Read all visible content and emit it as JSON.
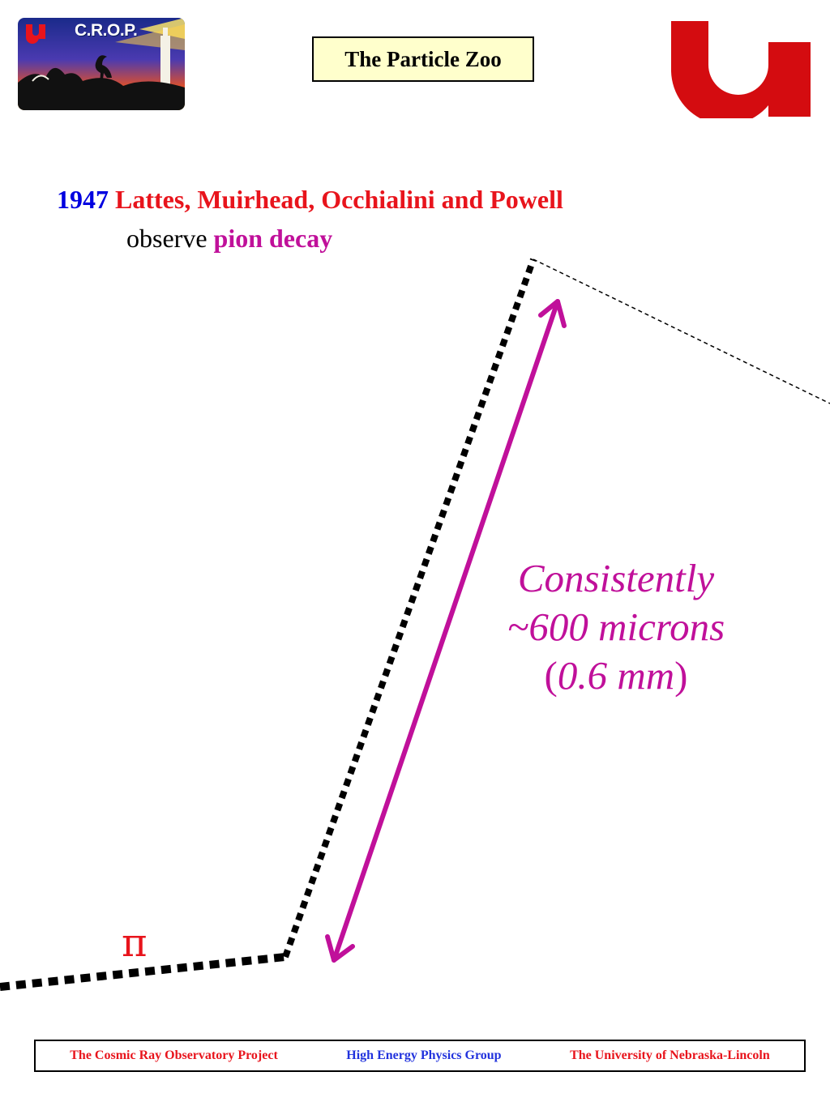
{
  "header": {
    "title": "The Particle Zoo",
    "crop_logo_text": "C.R.O.P."
  },
  "headline": {
    "year": "1947",
    "names": "Lattes, Muirhead, Occhialini and Powell",
    "observe": "observe",
    "highlight": "pion decay"
  },
  "diagram": {
    "annotation_line1": "Consistently",
    "annotation_line2": "~600 microns",
    "annotation_paren_open": "(",
    "annotation_measure": "0.6 mm",
    "annotation_paren_close": ")",
    "particle_label": "π"
  },
  "footer": {
    "left": "The Cosmic Ray Observatory Project",
    "center": "High Energy Physics Group",
    "right": "The University of Nebraska-Lincoln"
  },
  "colors": {
    "accent_magenta": "#c0109a",
    "red": "#e8141c",
    "blue": "#0000e0",
    "title_bg": "#ffffcc"
  }
}
